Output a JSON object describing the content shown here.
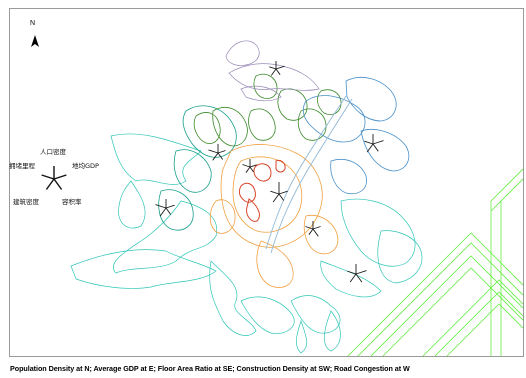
{
  "north_arrow": {
    "letter": "N",
    "icon": "north-arrow-icon"
  },
  "legend": {
    "top": "人口密度",
    "left": "拥堵里程",
    "right": "地均GDP",
    "bottom_left": "建筑密度",
    "bottom_right": "容积率"
  },
  "caption": "Population Density at N;  Average GDP at E;  Floor Area Ratio at SE;  Construction Density at SW;  Road Congestion at W",
  "colors": {
    "frame": "#9a9a9a",
    "cyan_outer": "#2ec6b6",
    "teal": "#19a08c",
    "green": "#3c8a2a",
    "orange": "#f0a040",
    "red": "#d8452a",
    "blue": "#4a90c8",
    "purple": "#9a8ab8",
    "lime_grid": "#66ee44",
    "star": "#1a1a1a"
  }
}
